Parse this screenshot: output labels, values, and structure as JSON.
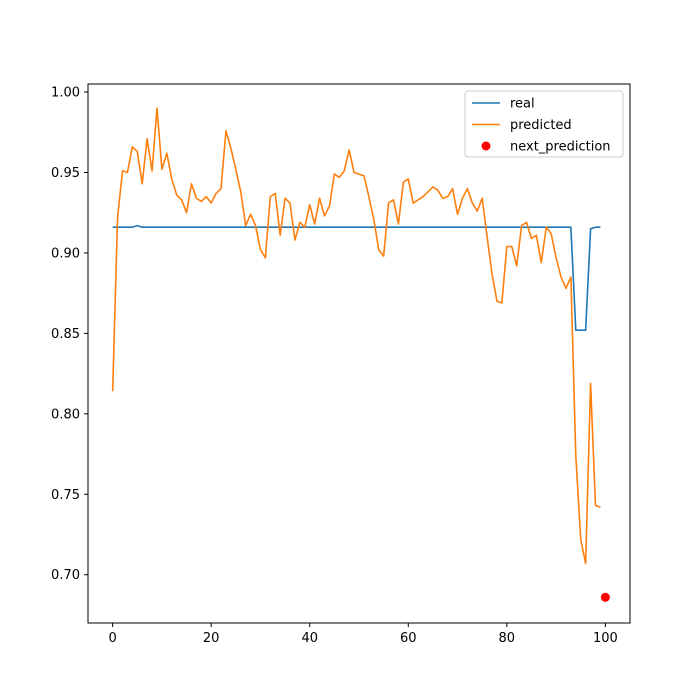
{
  "chart_data": {
    "type": "line",
    "title": "",
    "xlabel": "",
    "ylabel": "",
    "xlim": [
      -5,
      105
    ],
    "ylim": [
      0.67,
      1.005
    ],
    "xticks": [
      0,
      20,
      40,
      60,
      80,
      100
    ],
    "yticks": [
      0.7,
      0.75,
      0.8,
      0.85,
      0.9,
      0.95,
      1.0
    ],
    "xtick_labels": [
      "0",
      "20",
      "40",
      "60",
      "80",
      "100"
    ],
    "ytick_labels": [
      "0.70",
      "0.75",
      "0.80",
      "0.85",
      "0.90",
      "0.95",
      "1.00"
    ],
    "grid": false,
    "legend": "top-right",
    "series": [
      {
        "name": "real",
        "color": "#1f77b4",
        "kind": "line",
        "x": [
          0,
          1,
          2,
          3,
          4,
          5,
          6,
          7,
          8,
          9,
          10,
          11,
          12,
          13,
          14,
          15,
          16,
          17,
          18,
          19,
          20,
          21,
          22,
          23,
          24,
          25,
          26,
          27,
          28,
          29,
          30,
          31,
          32,
          33,
          34,
          35,
          36,
          37,
          38,
          39,
          40,
          41,
          42,
          43,
          44,
          45,
          46,
          47,
          48,
          49,
          50,
          51,
          52,
          53,
          54,
          55,
          56,
          57,
          58,
          59,
          60,
          61,
          62,
          63,
          64,
          65,
          66,
          67,
          68,
          69,
          70,
          71,
          72,
          73,
          74,
          75,
          76,
          77,
          78,
          79,
          80,
          81,
          82,
          83,
          84,
          85,
          86,
          87,
          88,
          89,
          90,
          91,
          92,
          93,
          94,
          95,
          96,
          97,
          98,
          99
        ],
        "values": [
          0.916,
          0.916,
          0.916,
          0.916,
          0.916,
          0.917,
          0.916,
          0.916,
          0.916,
          0.916,
          0.916,
          0.916,
          0.916,
          0.916,
          0.916,
          0.916,
          0.916,
          0.916,
          0.916,
          0.916,
          0.916,
          0.916,
          0.916,
          0.916,
          0.916,
          0.916,
          0.916,
          0.916,
          0.916,
          0.916,
          0.916,
          0.916,
          0.916,
          0.916,
          0.916,
          0.916,
          0.916,
          0.916,
          0.916,
          0.916,
          0.916,
          0.916,
          0.916,
          0.916,
          0.916,
          0.916,
          0.916,
          0.916,
          0.916,
          0.916,
          0.916,
          0.916,
          0.916,
          0.916,
          0.916,
          0.916,
          0.916,
          0.916,
          0.916,
          0.916,
          0.916,
          0.916,
          0.916,
          0.916,
          0.916,
          0.916,
          0.916,
          0.916,
          0.916,
          0.916,
          0.916,
          0.916,
          0.916,
          0.916,
          0.916,
          0.916,
          0.916,
          0.916,
          0.916,
          0.916,
          0.916,
          0.916,
          0.916,
          0.916,
          0.916,
          0.916,
          0.916,
          0.916,
          0.916,
          0.916,
          0.916,
          0.916,
          0.916,
          0.916,
          0.852,
          0.852,
          0.852,
          0.915,
          0.916,
          0.916
        ]
      },
      {
        "name": "predicted",
        "color": "#ff7f0e",
        "kind": "line",
        "x": [
          0,
          1,
          2,
          3,
          4,
          5,
          6,
          7,
          8,
          9,
          10,
          11,
          12,
          13,
          14,
          15,
          16,
          17,
          18,
          19,
          20,
          21,
          22,
          23,
          24,
          25,
          26,
          27,
          28,
          29,
          30,
          31,
          32,
          33,
          34,
          35,
          36,
          37,
          38,
          39,
          40,
          41,
          42,
          43,
          44,
          45,
          46,
          47,
          48,
          49,
          50,
          51,
          52,
          53,
          54,
          55,
          56,
          57,
          58,
          59,
          60,
          61,
          62,
          63,
          64,
          65,
          66,
          67,
          68,
          69,
          70,
          71,
          72,
          73,
          74,
          75,
          76,
          77,
          78,
          79,
          80,
          81,
          82,
          83,
          84,
          85,
          86,
          87,
          88,
          89,
          90,
          91,
          92,
          93,
          94,
          95,
          96,
          97,
          98,
          99
        ],
        "values": [
          0.814,
          0.922,
          0.951,
          0.95,
          0.966,
          0.963,
          0.943,
          0.971,
          0.951,
          0.99,
          0.952,
          0.962,
          0.946,
          0.936,
          0.933,
          0.925,
          0.943,
          0.934,
          0.932,
          0.935,
          0.931,
          0.937,
          0.94,
          0.976,
          0.965,
          0.952,
          0.938,
          0.917,
          0.924,
          0.917,
          0.902,
          0.897,
          0.935,
          0.937,
          0.911,
          0.934,
          0.931,
          0.908,
          0.919,
          0.916,
          0.93,
          0.918,
          0.934,
          0.923,
          0.929,
          0.949,
          0.947,
          0.951,
          0.964,
          0.95,
          0.949,
          0.948,
          0.935,
          0.921,
          0.902,
          0.898,
          0.931,
          0.933,
          0.918,
          0.944,
          0.946,
          0.931,
          0.933,
          0.935,
          0.938,
          0.941,
          0.939,
          0.934,
          0.935,
          0.94,
          0.924,
          0.934,
          0.94,
          0.931,
          0.926,
          0.934,
          0.91,
          0.887,
          0.87,
          0.869,
          0.904,
          0.904,
          0.892,
          0.917,
          0.919,
          0.909,
          0.911,
          0.894,
          0.916,
          0.912,
          0.897,
          0.885,
          0.878,
          0.885,
          0.774,
          0.722,
          0.707,
          0.819,
          0.743,
          0.742
        ]
      },
      {
        "name": "next_prediction",
        "color": "#ff0000",
        "kind": "scatter",
        "x": [
          100
        ],
        "values": [
          0.686
        ]
      }
    ]
  }
}
